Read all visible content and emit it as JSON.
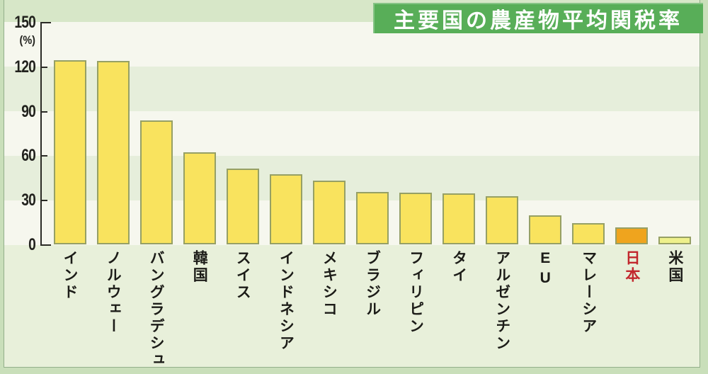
{
  "title": {
    "text": "主要国の農産物平均関税率"
  },
  "y_axis": {
    "unit_label": "(%)",
    "ticks": [
      150,
      120,
      90,
      60,
      30,
      0
    ]
  },
  "chart_data": {
    "type": "bar",
    "title": "主要国の農産物平均関税率",
    "ylabel": "(%)",
    "ylim": [
      0,
      150
    ],
    "yticks": [
      0,
      30,
      60,
      90,
      120,
      150
    ],
    "grid": "off",
    "legend": "none",
    "categories": [
      "インド",
      "ノルウェー",
      "バングラデシュ",
      "韓国",
      "スイス",
      "インドネシア",
      "メキシコ",
      "ブラジル",
      "フィリピン",
      "タイ",
      "アルゼンチン",
      "EU",
      "マレーシア",
      "日本",
      "米国"
    ],
    "values": [
      124.3,
      123.7,
      83.8,
      62.2,
      51.1,
      47.2,
      42.9,
      35.3,
      35.1,
      34.6,
      32.4,
      19.5,
      14.5,
      11.7,
      5.5
    ],
    "bar_color_default": "#f9e35e",
    "bar_border_color": "#96a065",
    "overrides": [
      {
        "index": 13,
        "category": "日本",
        "bar_color": "#efa41e",
        "label_color": "#c2272d"
      },
      {
        "index": 14,
        "category": "米国",
        "bar_color": "#eef08c"
      }
    ]
  },
  "colors": {
    "page_background": "#c9dfba",
    "stripe_cream": "#f6f7ee",
    "stripe_green": "#e6eedb",
    "top_band": "#d7e7c8",
    "label_area": "#e8f0da",
    "title_background": "#58ae58",
    "title_text": "#ffffff",
    "axis": "#2b2b26"
  }
}
